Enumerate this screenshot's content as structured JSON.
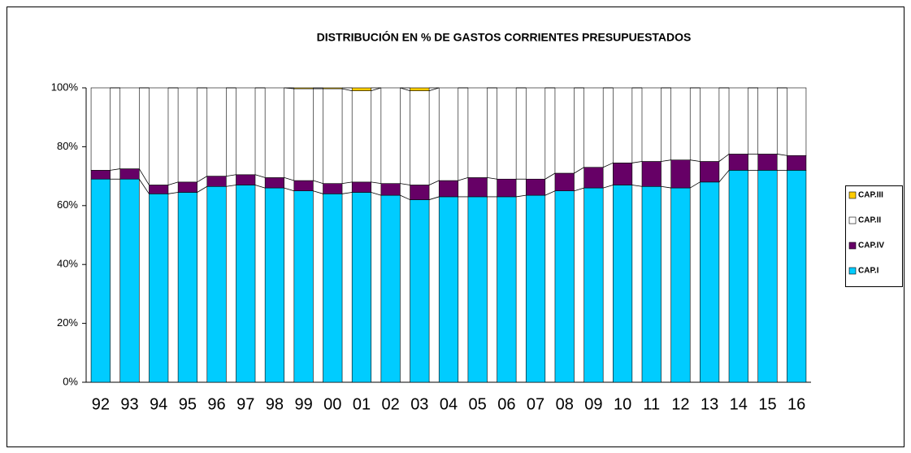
{
  "chart_data": {
    "type": "stacked_bar_100",
    "title": "DISTRIBUCIÓN EN % DE GASTOS CORRIENTES PRESUPUESTADOS",
    "categories": [
      "92",
      "93",
      "94",
      "95",
      "96",
      "97",
      "98",
      "99",
      "00",
      "01",
      "02",
      "03",
      "04",
      "05",
      "06",
      "07",
      "08",
      "09",
      "10",
      "11",
      "12",
      "13",
      "14",
      "15",
      "16"
    ],
    "series": [
      {
        "name": "CAP.I",
        "color": "#00ccff",
        "values": [
          69,
          69,
          64,
          64.5,
          66.5,
          67,
          66,
          65,
          64,
          64.5,
          63.5,
          62,
          63,
          63,
          63,
          63.5,
          65,
          66,
          67,
          66.5,
          66,
          68,
          72,
          72,
          72
        ]
      },
      {
        "name": "CAP.IV",
        "color": "#660066",
        "values": [
          3,
          3.5,
          3,
          3.5,
          3.5,
          3.5,
          3.5,
          3.5,
          3.5,
          3.5,
          4,
          5,
          5.5,
          6.5,
          6,
          5.5,
          6,
          7,
          7.5,
          8.5,
          9.5,
          7,
          5.5,
          5.5,
          5
        ]
      },
      {
        "name": "CAP.II",
        "color": "#ffffff",
        "values": [
          28,
          27.5,
          33,
          32,
          30,
          29.5,
          30.5,
          31.2,
          32.2,
          31,
          32.5,
          32,
          31.5,
          30.5,
          31,
          31,
          29,
          27,
          25.5,
          25,
          24.5,
          25,
          22.5,
          22.5,
          23
        ]
      },
      {
        "name": "CAP.III",
        "color": "#ffcc00",
        "values": [
          0,
          0,
          0,
          0,
          0,
          0,
          0,
          0.3,
          0.3,
          1,
          0,
          1,
          0,
          0,
          0,
          0,
          0,
          0,
          0,
          0,
          0,
          0,
          0,
          0,
          0
        ]
      }
    ],
    "ylim": [
      0,
      100
    ],
    "yticks": [
      {
        "value": 0,
        "label": "0%"
      },
      {
        "value": 20,
        "label": "20%"
      },
      {
        "value": 40,
        "label": "40%"
      },
      {
        "value": 60,
        "label": "60%"
      },
      {
        "value": 80,
        "label": "80%"
      },
      {
        "value": 100,
        "label": "100%"
      }
    ],
    "legend": "right"
  }
}
